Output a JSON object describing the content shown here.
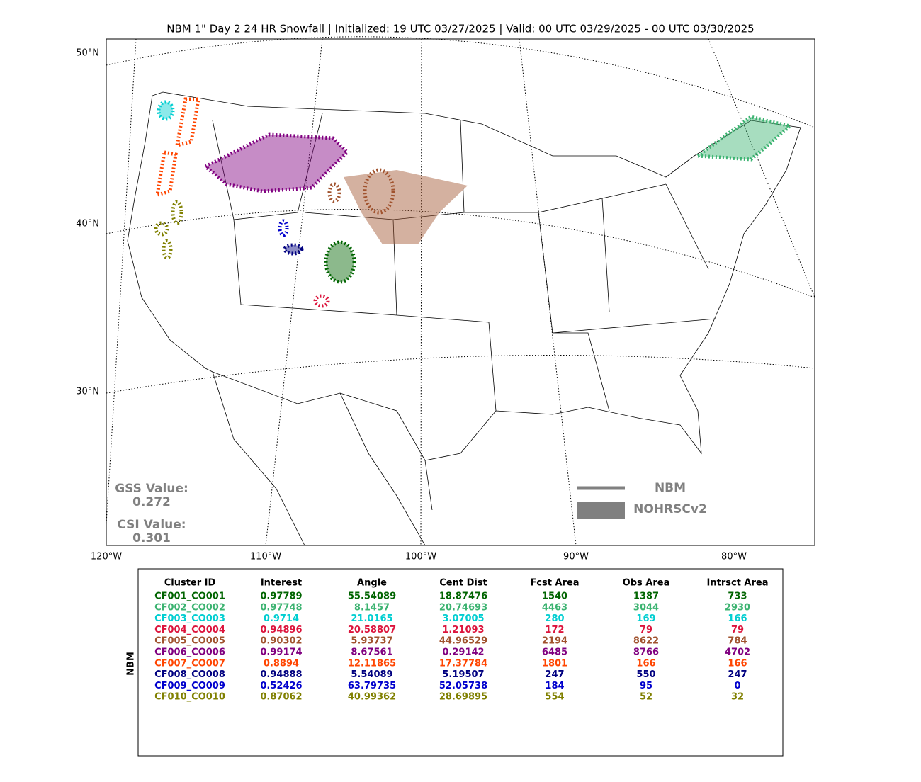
{
  "title": "NBM 1\" Day 2 24 HR Snowfall | Initialized: 19 UTC 03/27/2025 | Valid: 00 UTC 03/29/2025 - 00 UTC 03/30/2025",
  "map": {
    "lat_labels": [
      "50°N",
      "40°N",
      "30°N"
    ],
    "lon_labels": [
      "120°W",
      "110°W",
      "100°W",
      "90°W",
      "80°W"
    ],
    "scores": [
      {
        "label": "GSS Value:",
        "value": "0.272"
      },
      {
        "label": "CSI Value:",
        "value": "0.301"
      }
    ],
    "legend": [
      "NBM",
      "NOHRSCv2"
    ]
  },
  "table": {
    "side_label": "NBM",
    "columns": [
      "Cluster ID",
      "Interest",
      "Angle",
      "Cent Dist",
      "Fcst Area",
      "Obs Area",
      "Intrsct Area"
    ],
    "rows": [
      {
        "color": "#006400",
        "cells": [
          "CF001_CO001",
          "0.97789",
          "55.54089",
          "18.87476",
          "1540",
          "1387",
          "733"
        ]
      },
      {
        "color": "#3cb371",
        "cells": [
          "CF002_CO002",
          "0.97748",
          "8.1457",
          "20.74693",
          "4463",
          "3044",
          "2930"
        ]
      },
      {
        "color": "#00ced1",
        "cells": [
          "CF003_CO003",
          "0.9714",
          "21.0165",
          "3.07005",
          "280",
          "169",
          "166"
        ]
      },
      {
        "color": "#dc143c",
        "cells": [
          "CF004_CO004",
          "0.94896",
          "20.58807",
          "1.21093",
          "172",
          "79",
          "79"
        ]
      },
      {
        "color": "#a0522d",
        "cells": [
          "CF005_CO005",
          "0.90302",
          "5.93737",
          "44.96529",
          "2194",
          "8622",
          "784"
        ]
      },
      {
        "color": "#800080",
        "cells": [
          "CF006_CO006",
          "0.99174",
          "8.67561",
          "0.29142",
          "6485",
          "8766",
          "4702"
        ]
      },
      {
        "color": "#ff4500",
        "cells": [
          "CF007_CO007",
          "0.8894",
          "12.11865",
          "17.37784",
          "1801",
          "166",
          "166"
        ]
      },
      {
        "color": "#000080",
        "cells": [
          "CF008_CO008",
          "0.94888",
          "5.54089",
          "5.19507",
          "247",
          "550",
          "247"
        ]
      },
      {
        "color": "#0000cd",
        "cells": [
          "CF009_CO009",
          "0.52426",
          "63.79735",
          "52.05738",
          "184",
          "95",
          "0"
        ]
      },
      {
        "color": "#808000",
        "cells": [
          "CF010_CO010",
          "0.87062",
          "40.99362",
          "28.69895",
          "554",
          "52",
          "32"
        ]
      }
    ]
  }
}
